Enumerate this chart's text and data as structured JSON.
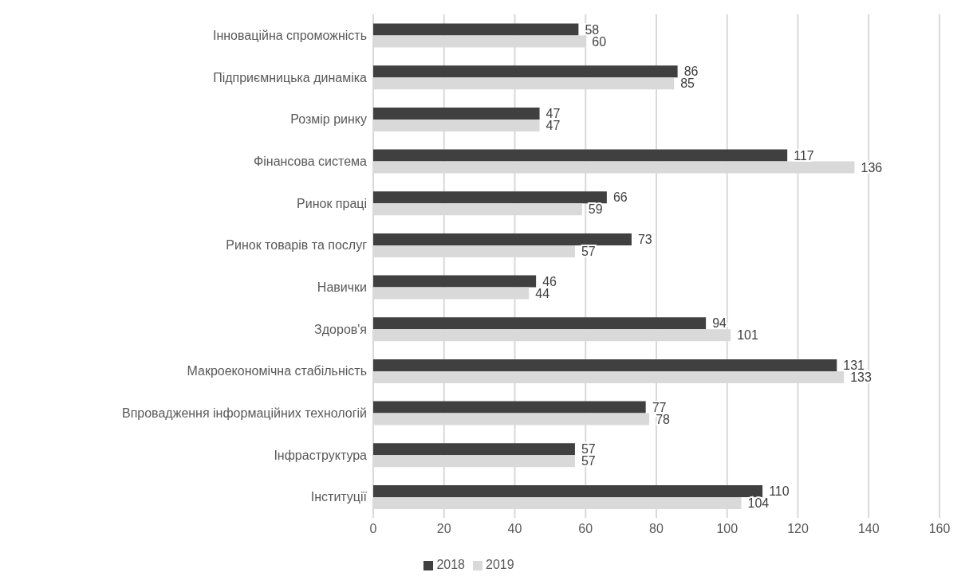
{
  "chart_data": {
    "type": "bar",
    "orientation": "horizontal",
    "categories": [
      "Інноваційна спроможність",
      "Підприємницька динаміка",
      "Розмір ринку",
      "Фінансова система",
      "Ринок праці",
      "Ринок товарів та послуг",
      "Навички",
      "Здоров'я",
      "Макроекономічна стабільність",
      "Впровадження інформаційних технологій",
      "Інфраструктура",
      "Інституції"
    ],
    "series": [
      {
        "name": "2018",
        "color": "#404040",
        "values": [
          58,
          86,
          47,
          117,
          66,
          73,
          46,
          94,
          131,
          77,
          57,
          110
        ]
      },
      {
        "name": "2019",
        "color": "#d9d9d9",
        "values": [
          60,
          85,
          47,
          136,
          59,
          57,
          44,
          101,
          133,
          78,
          57,
          104
        ]
      }
    ],
    "xlim": [
      0,
      160
    ],
    "xticks": [
      0,
      20,
      40,
      60,
      80,
      100,
      120,
      140,
      160
    ],
    "grid": "x",
    "legend": "bottom",
    "data_labels": true
  }
}
